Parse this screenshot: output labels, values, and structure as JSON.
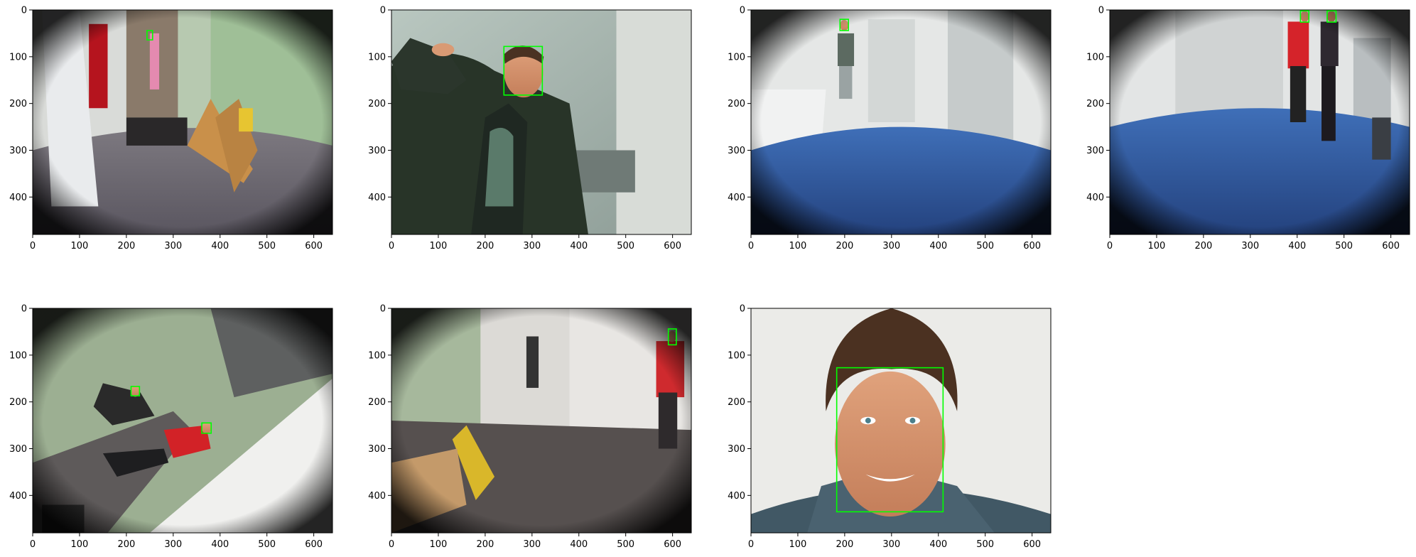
{
  "chart_data": [
    {
      "type": "image",
      "scene": "fisheye hallway with door, folding wooden boards and yellow wet-floor sign",
      "xlim": [
        0,
        640
      ],
      "ylim": [
        480,
        0
      ],
      "xticks": [
        0,
        100,
        200,
        300,
        400,
        500,
        600
      ],
      "yticks": [
        0,
        100,
        200,
        300,
        400
      ],
      "boxes": [
        [
          244,
          44,
          256,
          64
        ]
      ],
      "box_color": "#00ff00"
    },
    {
      "type": "image",
      "scene": "close-up of man in dark jacket making a peace sign near a mirror",
      "xlim": [
        0,
        640
      ],
      "ylim": [
        480,
        0
      ],
      "xticks": [
        0,
        100,
        200,
        300,
        400,
        500,
        600
      ],
      "yticks": [
        0,
        100,
        200,
        300,
        400
      ],
      "boxes": [
        [
          240,
          78,
          322,
          182
        ]
      ],
      "box_color": "#00ff00"
    },
    {
      "type": "image",
      "scene": "fisheye restroom with blue floor, person standing at far wall",
      "xlim": [
        0,
        640
      ],
      "ylim": [
        480,
        0
      ],
      "xticks": [
        0,
        100,
        200,
        300,
        400,
        500,
        600
      ],
      "yticks": [
        0,
        100,
        200,
        300,
        400
      ],
      "boxes": [
        [
          190,
          20,
          208,
          44
        ]
      ],
      "box_color": "#00ff00"
    },
    {
      "type": "image",
      "scene": "fisheye restroom with blue floor, two people standing near top edge",
      "xlim": [
        0,
        640
      ],
      "ylim": [
        480,
        0
      ],
      "xticks": [
        0,
        100,
        200,
        300,
        400,
        500,
        600
      ],
      "yticks": [
        0,
        100,
        200,
        300,
        400
      ],
      "boxes": [
        [
          407,
          2,
          425,
          26
        ],
        [
          464,
          2,
          483,
          26
        ]
      ],
      "box_color": "#00ff00"
    },
    {
      "type": "image",
      "scene": "tilted view of room with checkered wall and people bending over",
      "xlim": [
        0,
        640
      ],
      "ylim": [
        480,
        0
      ],
      "xticks": [
        0,
        100,
        200,
        300,
        400,
        500,
        600
      ],
      "yticks": [
        0,
        100,
        200,
        300,
        400
      ],
      "boxes": [
        [
          210,
          167,
          228,
          187
        ],
        [
          361,
          245,
          381,
          267
        ]
      ],
      "box_color": "#00ff00"
    },
    {
      "type": "image",
      "scene": "fisheye corridor with yellow sign, person in red shirt at right",
      "xlim": [
        0,
        640
      ],
      "ylim": [
        480,
        0
      ],
      "xticks": [
        0,
        100,
        200,
        300,
        400,
        500,
        600
      ],
      "yticks": [
        0,
        100,
        200,
        300,
        400
      ],
      "boxes": [
        [
          591,
          44,
          608,
          78
        ]
      ],
      "box_color": "#00ff00"
    },
    {
      "type": "image",
      "scene": "studio portrait of smiling man with brown hair on light background",
      "xlim": [
        0,
        640
      ],
      "ylim": [
        480,
        0
      ],
      "xticks": [
        0,
        100,
        200,
        300,
        400,
        500,
        600
      ],
      "yticks": [
        0,
        100,
        200,
        300,
        400
      ],
      "boxes": [
        [
          183,
          127,
          410,
          435
        ]
      ],
      "box_color": "#00ff00"
    }
  ]
}
